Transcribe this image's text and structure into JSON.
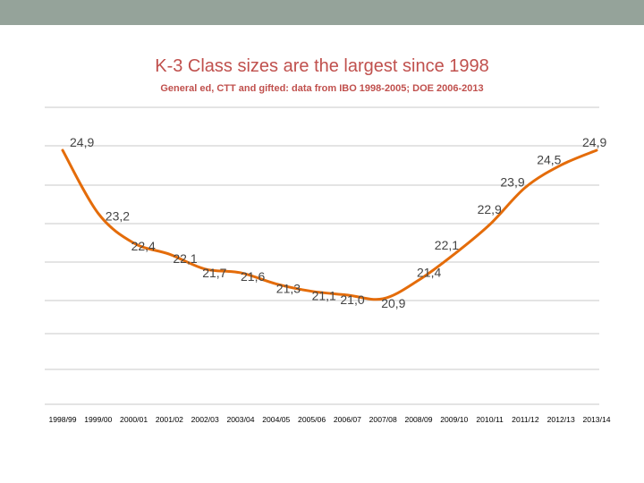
{
  "header": {
    "bar_color": "#95a39a"
  },
  "chart_data": {
    "type": "line",
    "title": "K-3 Class sizes are the largest since 1998",
    "subtitle": "General ed, CTT and gifted: data from IBO 1998-2005; DOE 2006-2013",
    "categories": [
      "1998/99",
      "1999/00",
      "2000/01",
      "2001/02",
      "2002/03",
      "2003/04",
      "2004/05",
      "2005/06",
      "2006/07",
      "2007/08",
      "2008/09",
      "2009/10",
      "2010/11",
      "2011/12",
      "2012/13",
      "2013/14"
    ],
    "values": [
      24.9,
      23.2,
      22.4,
      22.1,
      21.7,
      21.6,
      21.3,
      21.1,
      21.0,
      20.9,
      21.4,
      22.1,
      22.9,
      23.9,
      24.5,
      24.9
    ],
    "data_labels": [
      "24,9",
      "23,2",
      "22,4",
      "22,1",
      "21,7",
      "21,6",
      "21,3",
      "21,1",
      "21,0",
      "20,9",
      "21,4",
      "22,1",
      "22,9",
      "23,9",
      "24,5",
      "24,9"
    ],
    "line_color": "#e46c0a",
    "title_color": "#c0504d",
    "grid_color": "#c8c8c8",
    "grid": true,
    "legend": "none"
  }
}
